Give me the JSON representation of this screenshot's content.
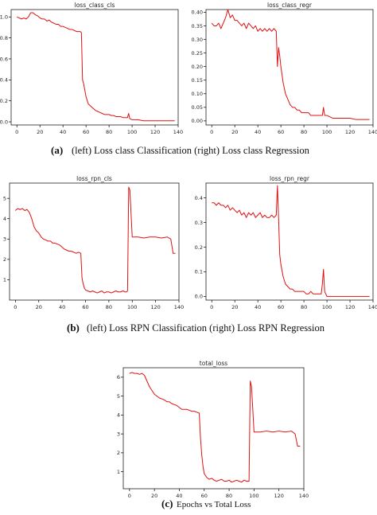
{
  "charts": [
    {
      "title": "loss_class_cls",
      "type": "line",
      "color": "#e01010",
      "xlim": [
        -5,
        140
      ],
      "ylim": [
        -0.03,
        1.07
      ],
      "x_ticks": [
        0,
        20,
        40,
        60,
        80,
        100,
        120,
        140
      ],
      "y_ticks": [
        0.0,
        0.2,
        0.4,
        0.6,
        0.8,
        1.0
      ],
      "y_tick_labels": [
        "0.0",
        "0.2",
        "0.4",
        "0.6",
        "0.8",
        "1.0"
      ],
      "x": [
        0,
        2,
        4,
        6,
        8,
        10,
        12,
        14,
        16,
        18,
        20,
        22,
        24,
        26,
        28,
        30,
        32,
        34,
        36,
        38,
        40,
        42,
        44,
        46,
        48,
        50,
        52,
        54,
        55,
        56,
        57,
        58,
        59,
        60,
        62,
        64,
        66,
        68,
        70,
        72,
        74,
        76,
        78,
        80,
        82,
        84,
        86,
        88,
        90,
        92,
        94,
        96,
        97,
        98,
        100,
        105,
        110,
        115,
        120,
        125,
        130,
        135,
        137
      ],
      "values": [
        1.0,
        0.99,
        0.98,
        0.99,
        0.98,
        1.0,
        1.04,
        1.04,
        1.02,
        1.01,
        0.99,
        0.98,
        0.98,
        0.96,
        0.97,
        0.95,
        0.94,
        0.93,
        0.93,
        0.91,
        0.91,
        0.9,
        0.89,
        0.88,
        0.88,
        0.87,
        0.86,
        0.86,
        0.86,
        0.85,
        0.4,
        0.36,
        0.3,
        0.24,
        0.17,
        0.15,
        0.13,
        0.11,
        0.1,
        0.09,
        0.08,
        0.07,
        0.07,
        0.07,
        0.06,
        0.06,
        0.05,
        0.05,
        0.05,
        0.04,
        0.04,
        0.04,
        0.08,
        0.03,
        0.02,
        0.02,
        0.01,
        0.01,
        0.01,
        0.01,
        0.01,
        0.01,
        0.01
      ]
    },
    {
      "title": "loss_class_regr",
      "type": "line",
      "color": "#e01010",
      "xlim": [
        -5,
        140
      ],
      "ylim": [
        -0.015,
        0.41
      ],
      "x_ticks": [
        0,
        20,
        40,
        60,
        80,
        100,
        120,
        140
      ],
      "y_ticks": [
        0.0,
        0.05,
        0.1,
        0.15,
        0.2,
        0.25,
        0.3,
        0.35,
        0.4
      ],
      "y_tick_labels": [
        "0.00",
        "0.05",
        "0.10",
        "0.15",
        "0.20",
        "0.25",
        "0.30",
        "0.35",
        "0.40"
      ],
      "x": [
        0,
        2,
        4,
        6,
        8,
        10,
        12,
        14,
        16,
        18,
        20,
        22,
        24,
        26,
        28,
        30,
        32,
        34,
        36,
        38,
        40,
        42,
        44,
        46,
        48,
        50,
        52,
        54,
        56,
        57,
        58,
        59,
        60,
        62,
        64,
        66,
        68,
        70,
        72,
        74,
        76,
        78,
        80,
        82,
        84,
        86,
        88,
        90,
        92,
        94,
        96,
        97,
        98,
        100,
        105,
        110,
        115,
        120,
        125,
        130,
        135,
        137
      ],
      "values": [
        0.36,
        0.35,
        0.35,
        0.36,
        0.34,
        0.36,
        0.38,
        0.41,
        0.38,
        0.39,
        0.37,
        0.37,
        0.36,
        0.35,
        0.36,
        0.34,
        0.36,
        0.35,
        0.34,
        0.35,
        0.33,
        0.34,
        0.33,
        0.34,
        0.33,
        0.34,
        0.33,
        0.34,
        0.33,
        0.2,
        0.27,
        0.24,
        0.2,
        0.14,
        0.1,
        0.08,
        0.06,
        0.05,
        0.05,
        0.04,
        0.04,
        0.03,
        0.03,
        0.03,
        0.03,
        0.02,
        0.02,
        0.02,
        0.02,
        0.02,
        0.02,
        0.05,
        0.02,
        0.02,
        0.01,
        0.01,
        0.01,
        0.01,
        0.005,
        0.005,
        0.005,
        0.005
      ]
    },
    {
      "title": "loss_rpn_cls",
      "type": "line",
      "color": "#e01010",
      "xlim": [
        -5,
        140
      ],
      "ylim": [
        0,
        5.75
      ],
      "x_ticks": [
        0,
        20,
        40,
        60,
        80,
        100,
        120,
        140
      ],
      "y_ticks": [
        1,
        2,
        3,
        4,
        5
      ],
      "y_tick_labels": [
        "1",
        "2",
        "3",
        "4",
        "5"
      ],
      "x": [
        0,
        2,
        4,
        6,
        8,
        10,
        12,
        14,
        16,
        18,
        20,
        22,
        24,
        26,
        28,
        30,
        32,
        34,
        36,
        38,
        40,
        42,
        44,
        46,
        48,
        50,
        52,
        54,
        56,
        57,
        58,
        59,
        60,
        62,
        64,
        66,
        68,
        70,
        72,
        74,
        76,
        78,
        80,
        82,
        84,
        86,
        88,
        90,
        92,
        94,
        95,
        96,
        97,
        98,
        100,
        105,
        110,
        115,
        120,
        125,
        130,
        133,
        135,
        137
      ],
      "values": [
        4.4,
        4.5,
        4.45,
        4.5,
        4.4,
        4.45,
        4.3,
        4.0,
        3.6,
        3.4,
        3.3,
        3.1,
        3.0,
        2.95,
        2.9,
        2.9,
        2.8,
        2.8,
        2.75,
        2.7,
        2.6,
        2.5,
        2.45,
        2.4,
        2.4,
        2.35,
        2.3,
        2.35,
        2.3,
        1.1,
        0.8,
        0.6,
        0.5,
        0.45,
        0.4,
        0.45,
        0.4,
        0.35,
        0.4,
        0.45,
        0.35,
        0.4,
        0.4,
        0.35,
        0.4,
        0.45,
        0.4,
        0.4,
        0.45,
        0.4,
        0.4,
        0.45,
        5.55,
        5.4,
        3.1,
        3.1,
        3.05,
        3.1,
        3.1,
        3.05,
        3.1,
        3.0,
        2.3,
        2.3
      ]
    },
    {
      "title": "loss_rpn_regr",
      "type": "line",
      "color": "#e01010",
      "xlim": [
        -5,
        140
      ],
      "ylim": [
        -0.015,
        0.46
      ],
      "x_ticks": [
        0,
        20,
        40,
        60,
        80,
        100,
        120,
        140
      ],
      "y_ticks": [
        0.0,
        0.1,
        0.2,
        0.3,
        0.4
      ],
      "y_tick_labels": [
        "0.0",
        "0.1",
        "0.2",
        "0.3",
        "0.4"
      ],
      "x": [
        0,
        2,
        4,
        6,
        8,
        10,
        12,
        14,
        16,
        18,
        20,
        22,
        24,
        26,
        28,
        30,
        32,
        34,
        36,
        38,
        40,
        42,
        44,
        46,
        48,
        50,
        52,
        54,
        56,
        57,
        58,
        59,
        60,
        62,
        64,
        66,
        68,
        70,
        72,
        74,
        76,
        78,
        80,
        82,
        84,
        86,
        88,
        90,
        92,
        94,
        95,
        96,
        97,
        98,
        100,
        105,
        110,
        115,
        120,
        125,
        130,
        135,
        137
      ],
      "values": [
        0.38,
        0.38,
        0.37,
        0.38,
        0.37,
        0.37,
        0.36,
        0.37,
        0.35,
        0.36,
        0.35,
        0.34,
        0.35,
        0.33,
        0.34,
        0.32,
        0.34,
        0.33,
        0.34,
        0.32,
        0.33,
        0.34,
        0.32,
        0.33,
        0.32,
        0.32,
        0.33,
        0.32,
        0.33,
        0.45,
        0.32,
        0.17,
        0.13,
        0.08,
        0.05,
        0.04,
        0.03,
        0.03,
        0.02,
        0.02,
        0.02,
        0.02,
        0.02,
        0.01,
        0.01,
        0.02,
        0.01,
        0.01,
        0.01,
        0.01,
        0.01,
        0.05,
        0.11,
        0.02,
        0.0,
        0.0,
        0.0,
        0.0,
        0.0,
        0.0,
        0.0,
        0.0,
        0.0
      ]
    },
    {
      "title": "total_loss",
      "type": "line",
      "color": "#e01010",
      "xlim": [
        -5,
        140
      ],
      "ylim": [
        0.1,
        6.5
      ],
      "x_ticks": [
        0,
        20,
        40,
        60,
        80,
        100,
        120,
        140
      ],
      "y_ticks": [
        1,
        2,
        3,
        4,
        5,
        6
      ],
      "y_tick_labels": [
        "1",
        "2",
        "3",
        "4",
        "5",
        "6"
      ],
      "x": [
        0,
        2,
        4,
        6,
        8,
        10,
        12,
        14,
        16,
        18,
        20,
        22,
        24,
        26,
        28,
        30,
        32,
        34,
        36,
        38,
        40,
        42,
        44,
        46,
        48,
        50,
        52,
        54,
        56,
        57,
        58,
        59,
        60,
        62,
        64,
        66,
        68,
        70,
        72,
        74,
        76,
        78,
        80,
        82,
        84,
        86,
        88,
        90,
        92,
        94,
        95,
        96,
        97,
        98,
        100,
        105,
        110,
        115,
        120,
        125,
        130,
        133,
        135,
        137
      ],
      "values": [
        6.2,
        6.25,
        6.2,
        6.2,
        6.15,
        6.2,
        6.1,
        5.8,
        5.5,
        5.3,
        5.1,
        5.0,
        4.9,
        4.85,
        4.8,
        4.7,
        4.7,
        4.6,
        4.55,
        4.5,
        4.4,
        4.3,
        4.3,
        4.3,
        4.25,
        4.2,
        4.2,
        4.15,
        4.1,
        2.8,
        1.9,
        1.3,
        0.9,
        0.7,
        0.6,
        0.65,
        0.55,
        0.5,
        0.55,
        0.6,
        0.5,
        0.5,
        0.55,
        0.45,
        0.5,
        0.55,
        0.5,
        0.45,
        0.55,
        0.5,
        0.5,
        0.5,
        5.8,
        5.5,
        3.1,
        3.1,
        3.15,
        3.1,
        3.15,
        3.1,
        3.15,
        3.0,
        2.35,
        2.35
      ]
    }
  ],
  "captions": {
    "a_label": "(a)",
    "a_text": "(left) Loss class Classification (right) Loss class Regression",
    "b_label": "(b)",
    "b_text": "(left) Loss RPN Classification (right) Loss RPN Regression",
    "c_label": "(c)",
    "c_text": "Epochs vs Total Loss"
  }
}
